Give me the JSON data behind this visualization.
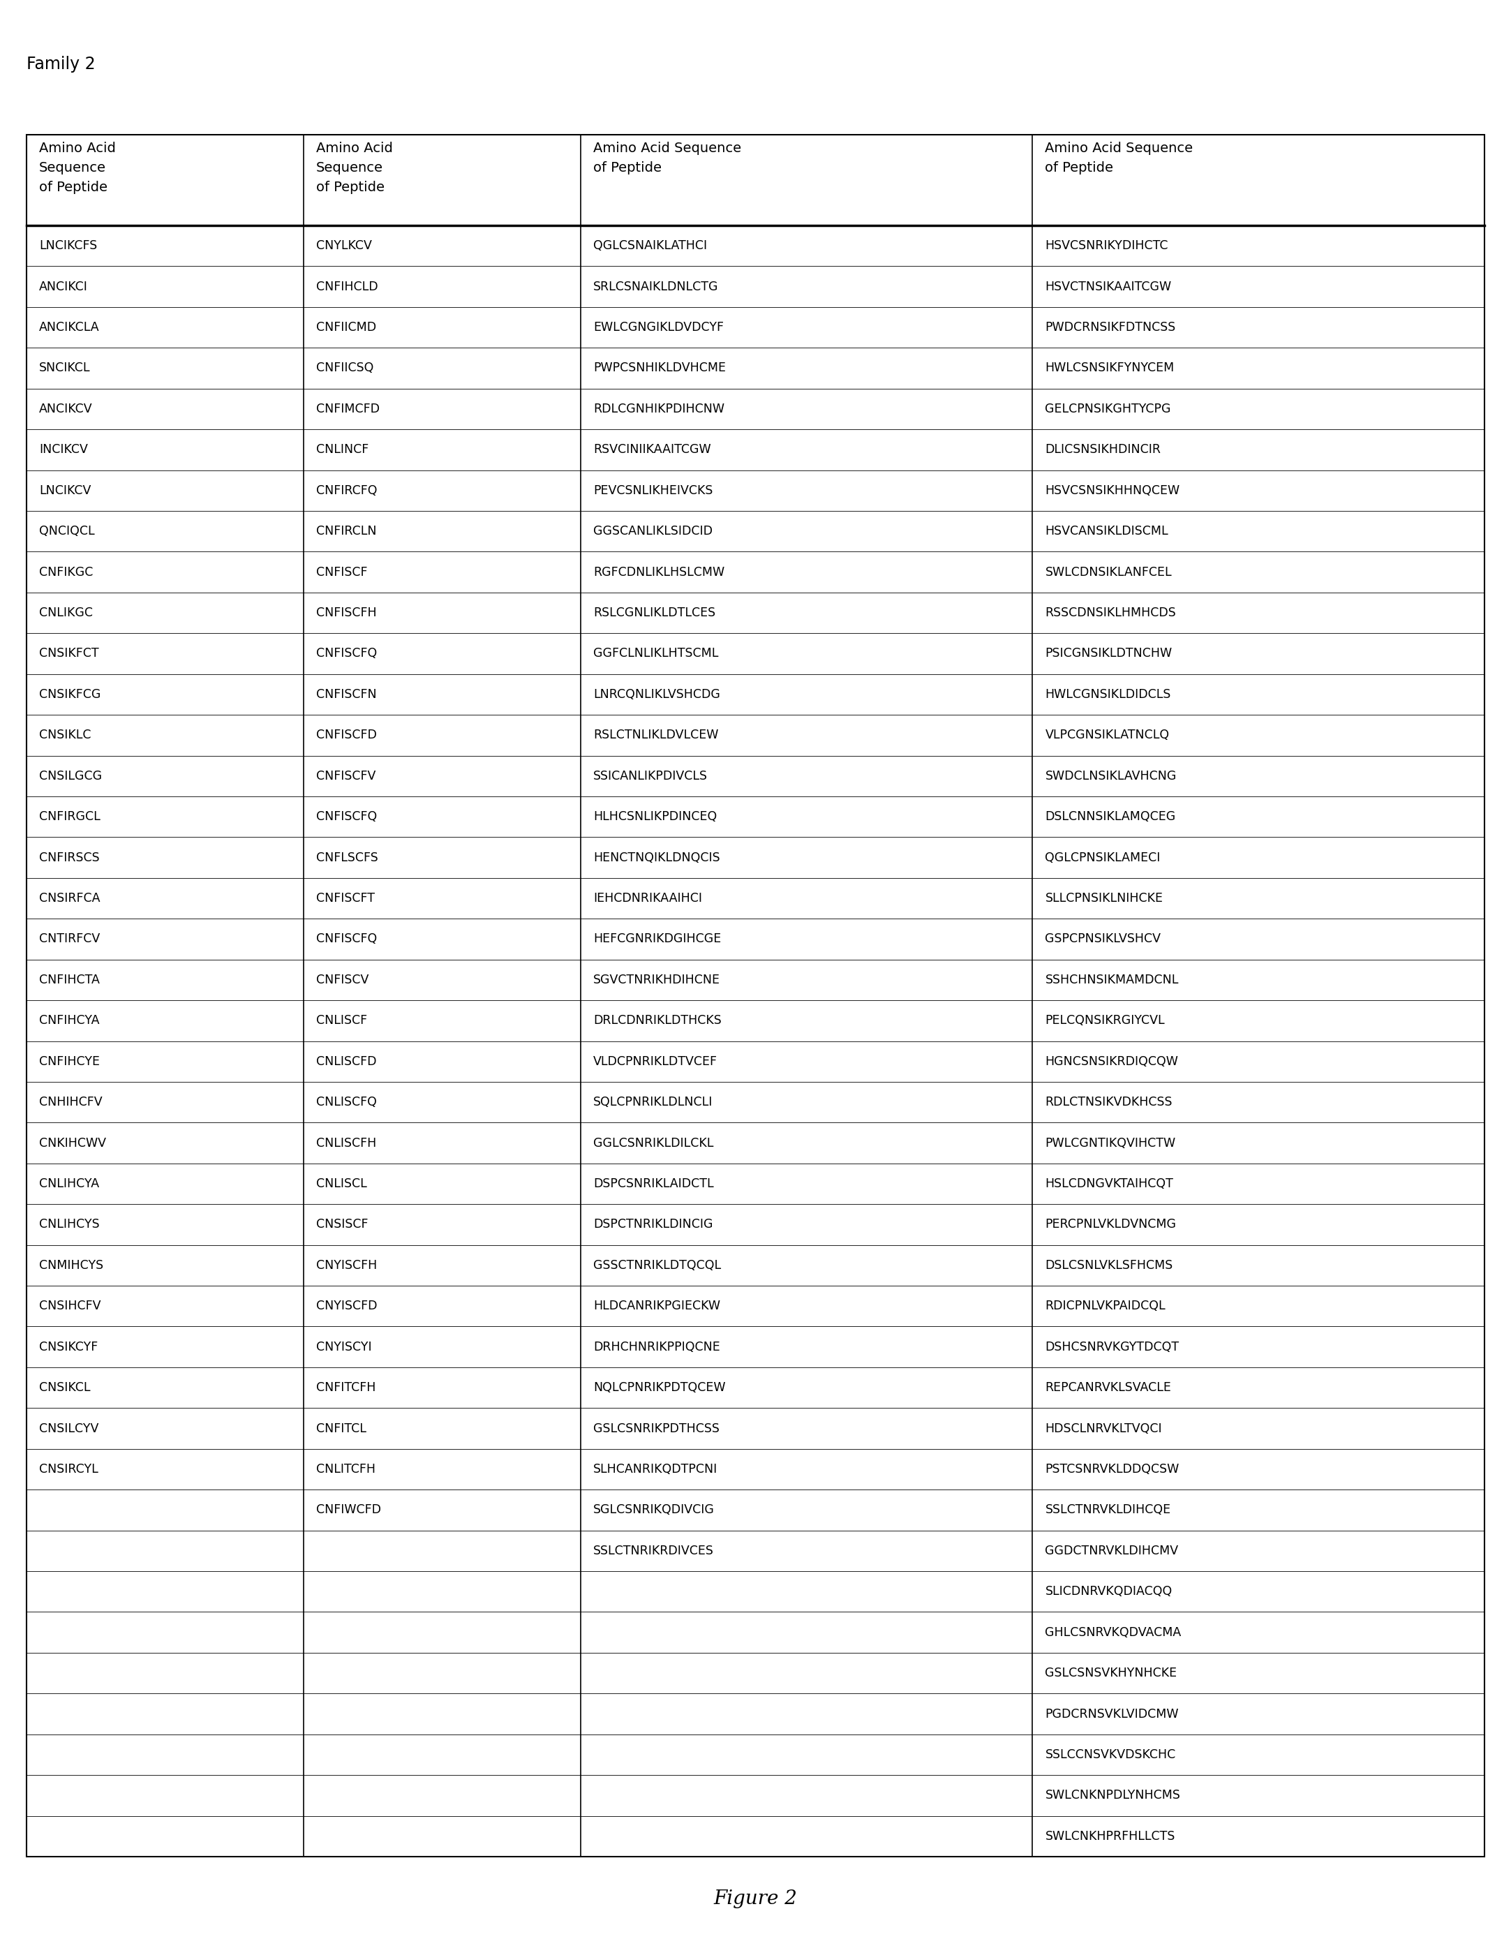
{
  "title": "Family 2",
  "figure_caption": "Figure 2",
  "headers": [
    "Amino Acid\nSequence\nof Peptide",
    "Amino Acid\nSequence\nof Peptide",
    "Amino Acid Sequence\nof Peptide",
    "Amino Acid Sequence\nof Peptide"
  ],
  "col1": [
    "LNCIKCFS",
    "ANCIKCI",
    "ANCIKCLA",
    "SNCIKCL",
    "ANCIKCV",
    "INCIKCV",
    "LNCIKCV",
    "QNCIQCL",
    "CNFIKGC",
    "CNLIKGC",
    "CNSIKFCT",
    "CNSIKFCG",
    "CNSIKLC",
    "CNSILGCG",
    "CNFIRGCL",
    "CNFIRSCS",
    "CNSIRFCA",
    "CNTIRFCV",
    "CNFIHCTA",
    "CNFIHCYA",
    "CNFIHCYE",
    "CNHIHCFV",
    "CNKIHCWV",
    "CNLIHCYA",
    "CNLIHCYS",
    "CNMIHCYS",
    "CNSIHCFV",
    "CNSIKCYF",
    "CNSIKCL",
    "CNSILCYV",
    "CNSIRCYL"
  ],
  "col2": [
    "CNYLKCV",
    "CNFIHCLD",
    "CNFIICMD",
    "CNFIICSQ",
    "CNFIMCFD",
    "CNLINCF",
    "CNFIRCFQ",
    "CNFIRCLN",
    "CNFISCF",
    "CNFISCFH",
    "CNFISCFQ",
    "CNFISCFN",
    "CNFISCFD",
    "CNFISCFV",
    "CNFISCFQ",
    "CNFLSCFS",
    "CNFISCFT",
    "CNFISCFQ",
    "CNFISCV",
    "CNLISCF",
    "CNLISCFD",
    "CNLISCFQ",
    "CNLISCFH",
    "CNLISCL",
    "CNSISCF",
    "CNYISCFH",
    "CNYISCFD",
    "CNYISCYI",
    "CNFITCFH",
    "CNFITCL",
    "CNLITCFH",
    "CNFIWCFD"
  ],
  "col3": [
    "QGLCSNAIKLATHCI",
    "SRLCSNAIKLDNLCTG",
    "EWLCGNGIKLDVDCYF",
    "PWPCSNHIKLDVHCME",
    "RDLCGNHIKPDIHCNW",
    "RSVCINIIKAAITCGW",
    "PEVCSNLIKHEIVCKS",
    "GGSCANLIKLSIDCID",
    "RGFCDNLIKLHSLCMW",
    "RSLCGNLIKLDTLCES",
    "GGFCLNLIKLHTSCML",
    "LNRCQNLIKLVSHCDG",
    "RSLCTNLIKLDVLCEW",
    "SSICANLIKPDIVCLS",
    "HLHCSNLIKPDINCEQ",
    "HENCTNQIKLDNQCIS",
    "IEHCDNRIKAAIHCI",
    "HEFCGNRIKDGIHCGE",
    "SGVCTNRIKHDIHCNE",
    "DRLCDNRIKLDTHCKS",
    "VLDCPNRIKLDTVCEF",
    "SQLCPNRIKLDLNCLI",
    "GGLCSNRIKLDILCKL",
    "DSPCSNRIKLAIDCTL",
    "DSPCTNRIKLDINCIG",
    "GSSCTNRIKLDTQCQL",
    "HLDCANRIKPGIECKW",
    "DRHCHNRIKPPIQCNE",
    "NQLCPNRIKPDTQCEW",
    "GSLCSNRIKPDTHCSS",
    "SLHCANRIKQDTPCNI",
    "SGLCSNRIKQDIVCIG",
    "SSLCTNRIKRDIVCES"
  ],
  "col4": [
    "HSVCSNRIKYDIHCTC",
    "HSVCTNSIKAAITCGW",
    "PWDCRNSIKFDTNCSS",
    "HWLCSNSIKFYNYCEM",
    "GELCPNSIKGHTYCPG",
    "DLICSNSIKHDINCIR",
    "HSVCSNSIKHHNQCEW",
    "HSVCANSIKLDISCML",
    "SWLCDNSIKLANFCEL",
    "RSSCDNSIKLHMHCDS",
    "PSICGNSIKLDTNCHW",
    "HWLCGNSIKLDIDCLS",
    "VLPCGNSIKLATNCLQ",
    "SWDCLNSIKLAVHCNG",
    "DSLCNNSIKLAMQCEG",
    "QGLCPNSIKLAMECI",
    "SLLCPNSIKLNIHCKE",
    "GSPCPNSIKLVSHCV",
    "SSHCHNSIKMAMDCNL",
    "PELCQNSIKRGIYCVL",
    "HGNCSNSIKRDIQCQW",
    "RDLCTNSIKVDKHCSS",
    "PWLCGNTIKQVIHCTW",
    "HSLCDNGVKTAIHCQT",
    "PERCPNLVKLDVNCMG",
    "DSLCSNLVKLSFHCMS",
    "RDICPNLVKPAIDCQL",
    "DSHCSNRVKGYTDCQT",
    "REPCANRVKLSVACLE",
    "HDSCLNRVKLTVQCI",
    "PSTCSNRVKLDDQCSW",
    "SSLCTNRVKLDIHCQE",
    "GGDCTNRVKLDIHCMV",
    "SLICDNRVKQDIACQQ",
    "GHLCSNRVKQDVACMA",
    "GSLCSNSVKHYNHCKE",
    "PGDCRNSVKLVIDCMW",
    "SSLCCNSVKVDSKCHC",
    "SWLCNKNPDLYNHCMS",
    "SWLCNKHPRFHLLCTS"
  ],
  "background_color": "#ffffff",
  "text_color": "#000000",
  "border_color": "#000000",
  "header_font_size": 14,
  "cell_font_size": 12.5,
  "title_font_size": 17,
  "caption_font_size": 20
}
